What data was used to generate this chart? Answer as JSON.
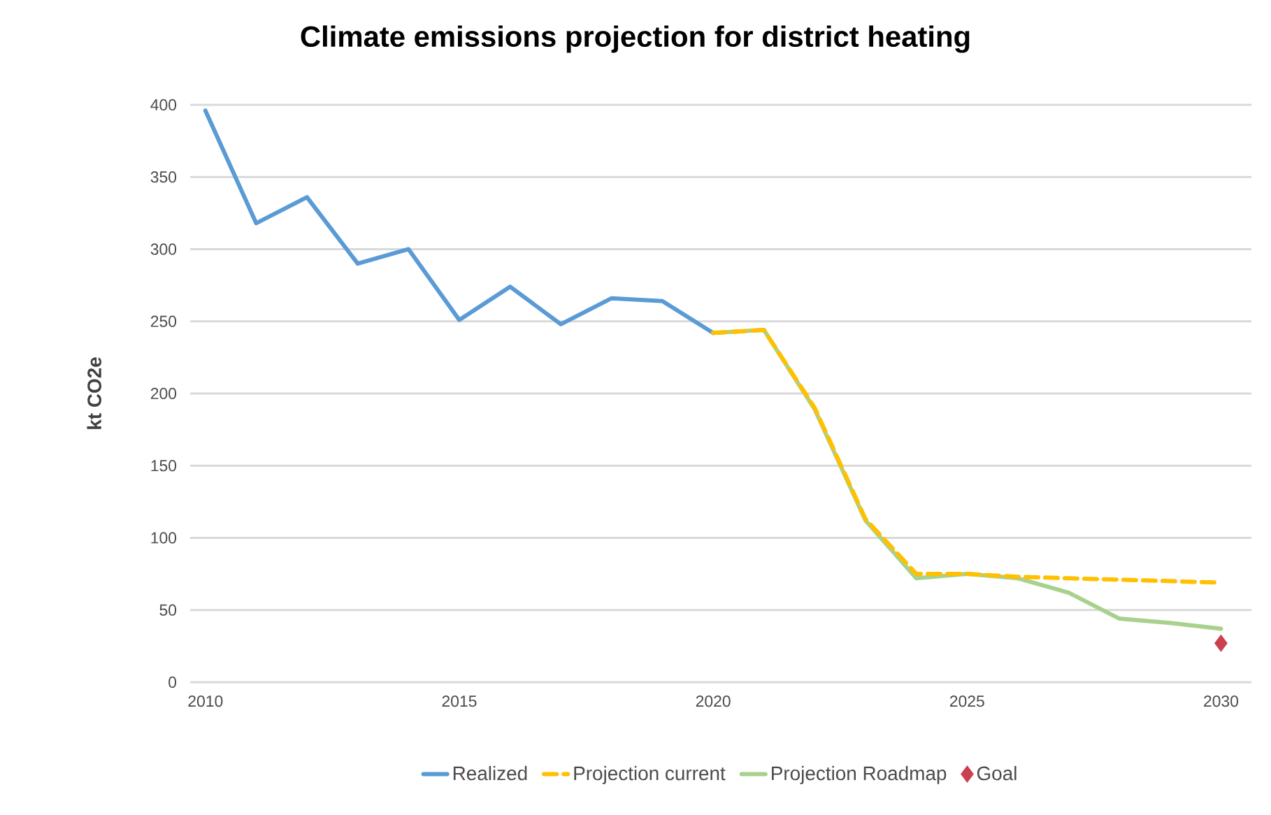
{
  "chart_data": {
    "type": "line",
    "title": "Climate emissions projection for district heating",
    "ylabel": "kt CO2e",
    "xlim": [
      2009.7,
      2030.6
    ],
    "ylim": [
      0,
      400
    ],
    "xticks": [
      2010,
      2015,
      2020,
      2025,
      2030
    ],
    "yticks": [
      0,
      50,
      100,
      150,
      200,
      250,
      300,
      350,
      400
    ],
    "grid": "y",
    "legend": "bottom",
    "marker": "none",
    "line_style": "solid",
    "series": [
      {
        "name": "Realized",
        "color": "#5b9bd5",
        "x": [
          2010,
          2011,
          2012,
          2013,
          2014,
          2015,
          2016,
          2017,
          2018,
          2019,
          2020
        ],
        "values": [
          396,
          318,
          336,
          290,
          300,
          251,
          274,
          248,
          266,
          264,
          242
        ]
      },
      {
        "name": "Projection current",
        "color": "#ffc000",
        "line_style": "dashed",
        "x": [
          2020,
          2021,
          2022,
          2023,
          2024,
          2025,
          2026,
          2027,
          2028,
          2029,
          2030
        ],
        "values": [
          242,
          244,
          190,
          113,
          75,
          75,
          73,
          72,
          71,
          70,
          69
        ]
      },
      {
        "name": "Projection Roadmap",
        "color": "#a9d18e",
        "x": [
          2020,
          2021,
          2022,
          2023,
          2024,
          2025,
          2026,
          2027,
          2028,
          2029,
          2030
        ],
        "values": [
          242,
          244,
          189,
          112,
          72,
          75,
          72,
          62,
          44,
          41,
          37
        ]
      },
      {
        "name": "Goal",
        "type": "scatter",
        "marker": "diamond",
        "color": "#c9404f",
        "x": [
          2030
        ],
        "values": [
          27
        ]
      }
    ]
  }
}
